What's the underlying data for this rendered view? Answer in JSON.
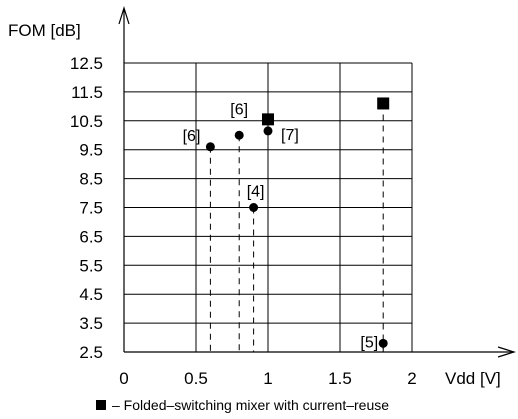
{
  "chart_data": {
    "type": "scatter",
    "ylabel": "FOM [dB]",
    "xlabel": "Vdd [V]",
    "xlim": [
      0,
      2
    ],
    "ylim": [
      2.5,
      12.5
    ],
    "x_ticks": [
      "0",
      "0.5",
      "1",
      "1.5",
      "2"
    ],
    "y_ticks": [
      "2.5",
      "3.5",
      "4.5",
      "5.5",
      "6.5",
      "7.5",
      "8.5",
      "9.5",
      "10.5",
      "11.5",
      "12.5"
    ],
    "grid": true,
    "series": [
      {
        "marker": "square",
        "points": [
          {
            "x": 1.0,
            "y": 10.55,
            "label": ""
          },
          {
            "x": 1.8,
            "y": 11.1,
            "label": ""
          }
        ]
      },
      {
        "marker": "circle",
        "points": [
          {
            "x": 0.6,
            "y": 9.6,
            "label": "[6]"
          },
          {
            "x": 0.8,
            "y": 10.0,
            "label": "[6]"
          },
          {
            "x": 0.9,
            "y": 7.5,
            "label": "[4]"
          },
          {
            "x": 1.0,
            "y": 10.15,
            "label": "[7]"
          },
          {
            "x": 1.8,
            "y": 2.8,
            "label": "[5]"
          }
        ]
      }
    ],
    "legend": [
      {
        "marker": "square",
        "text": "– Folded–switching mixer with current–reuse"
      }
    ]
  }
}
